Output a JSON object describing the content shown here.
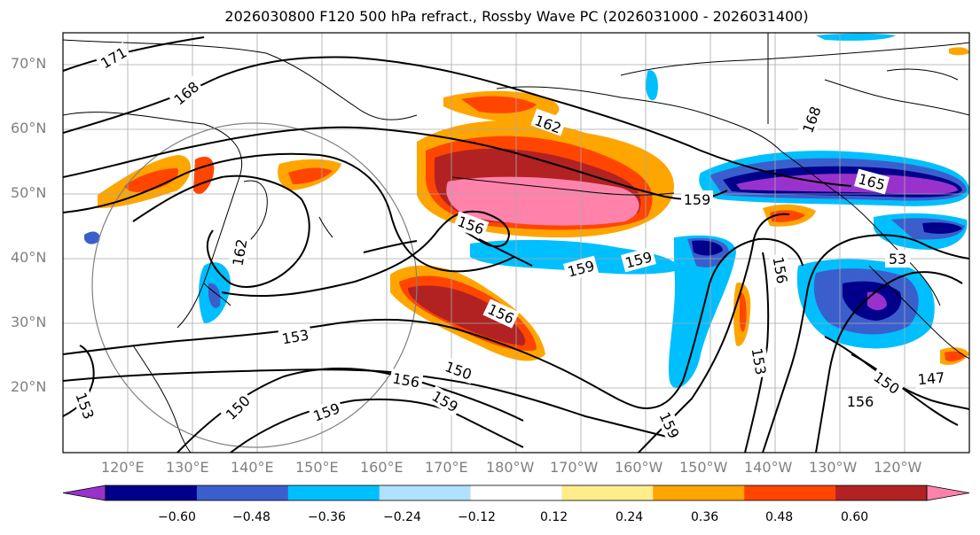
{
  "title": "2026030800 F120 500 hPa refract., Rossby Wave PC (2026031000 - 2026031400)",
  "latitude_labels": [
    "70°N",
    "60°N",
    "50°N",
    "40°N",
    "30°N",
    "20°N"
  ],
  "longitude_labels": [
    "120°E",
    "130°E",
    "140°E",
    "150°E",
    "160°E",
    "170°E",
    "180°W",
    "170°W",
    "160°W",
    "150°W",
    "140°W",
    "130°W",
    "120°W"
  ],
  "contour_labels": [
    "171",
    "168",
    "162",
    "162",
    "159",
    "165",
    "168",
    "156",
    "156",
    "159",
    "159",
    "153",
    "150",
    "156",
    "159",
    "159",
    "150",
    "150",
    "156",
    "153",
    "159",
    "147",
    "156",
    "53",
    "153"
  ],
  "colorbar": {
    "ticks": [
      "−0.60",
      "−0.48",
      "−0.36",
      "−0.24",
      "−0.12",
      "0.12",
      "0.24",
      "0.36",
      "0.48",
      "0.60"
    ],
    "colors": [
      "#9932CC",
      "#00008B",
      "#3A5FCD",
      "#00BFFF",
      "#B0E2FF",
      "#FFFFFF",
      "#FFEC8B",
      "#FFA500",
      "#FF4500",
      "#B22222",
      "#FF82AB"
    ]
  }
}
